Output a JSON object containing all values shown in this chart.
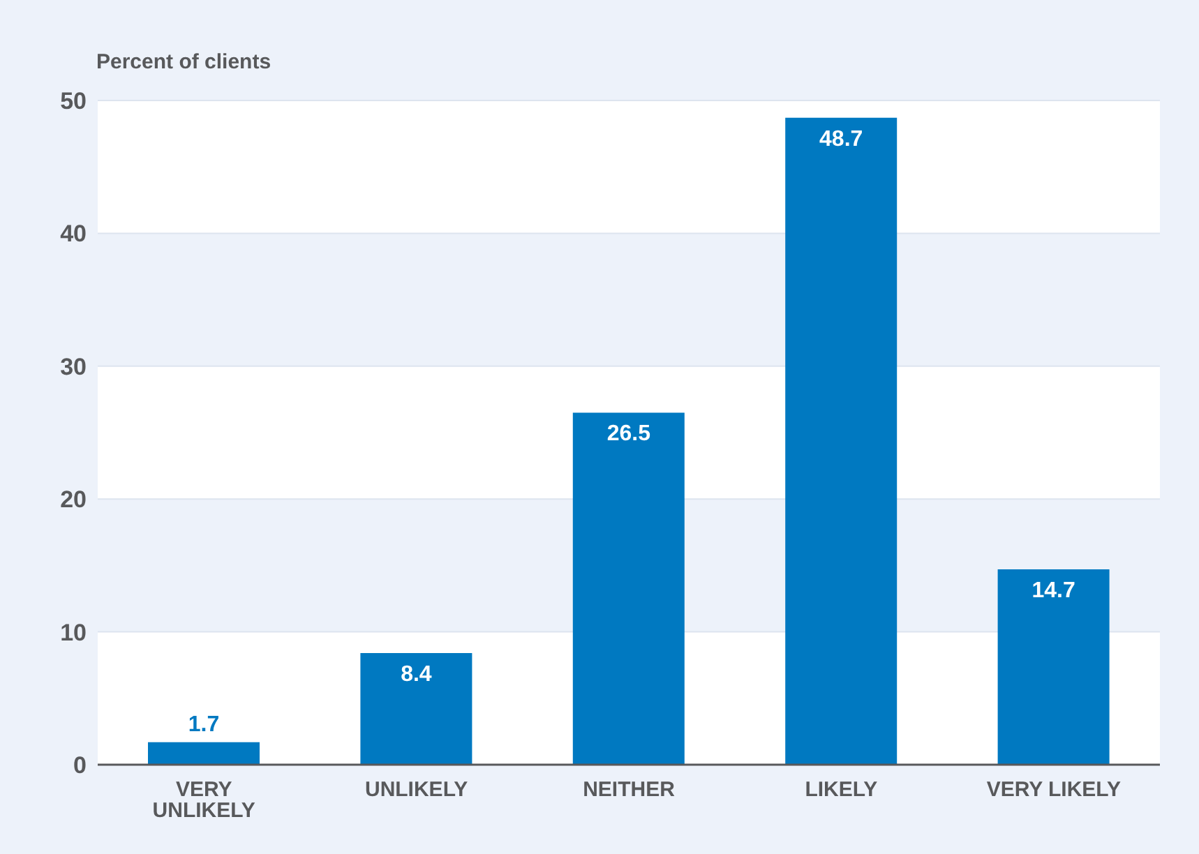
{
  "chart_data": {
    "type": "bar",
    "ylabel": "Percent of clients",
    "categories": [
      "VERY UNLIKELY",
      "UNLIKELY",
      "NEITHER",
      "LIKELY",
      "VERY LIKELY"
    ],
    "values": [
      1.7,
      8.4,
      26.5,
      48.7,
      14.7
    ],
    "color": "#0079c1",
    "ylim": [
      0,
      50
    ],
    "yticks": [
      0,
      10,
      20,
      30,
      40,
      50
    ],
    "grid": "y",
    "data_labels": true
  }
}
